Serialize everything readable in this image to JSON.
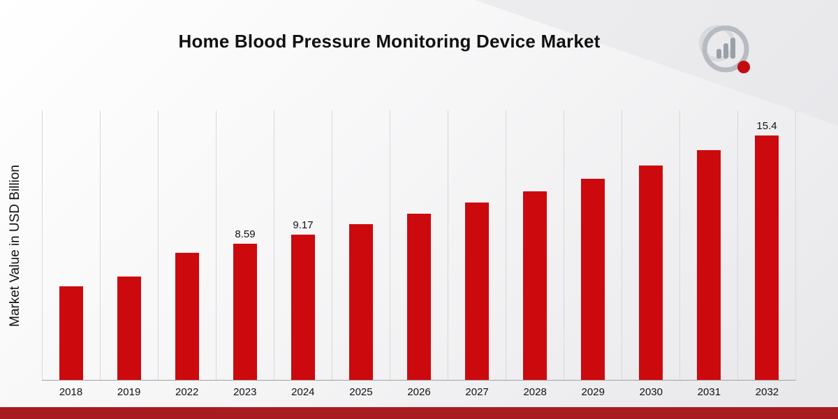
{
  "page": {
    "title": "Home Blood Pressure Monitoring Device Market"
  },
  "chart_data": {
    "type": "bar",
    "title": "Home Blood Pressure Monitoring Device Market",
    "xlabel": "",
    "ylabel": "Market Value in USD Billion",
    "categories": [
      "2018",
      "2019",
      "2022",
      "2023",
      "2024",
      "2025",
      "2026",
      "2027",
      "2028",
      "2029",
      "2030",
      "2031",
      "2032"
    ],
    "values": [
      5.9,
      6.5,
      8.0,
      8.59,
      9.17,
      9.8,
      10.5,
      11.2,
      11.9,
      12.7,
      13.5,
      14.5,
      15.4
    ],
    "bar_labels": [
      "",
      "",
      "",
      "8.59",
      "9.17",
      "",
      "",
      "",
      "",
      "",
      "",
      "",
      "15.4"
    ],
    "ylim": [
      0,
      17
    ],
    "bar_color": "#CC0A0E",
    "gridlines": "vertical",
    "legend": "none"
  },
  "branding": {
    "logo_icon": "market-research-logo-icon",
    "accent_bar_color": "#A81B20"
  }
}
